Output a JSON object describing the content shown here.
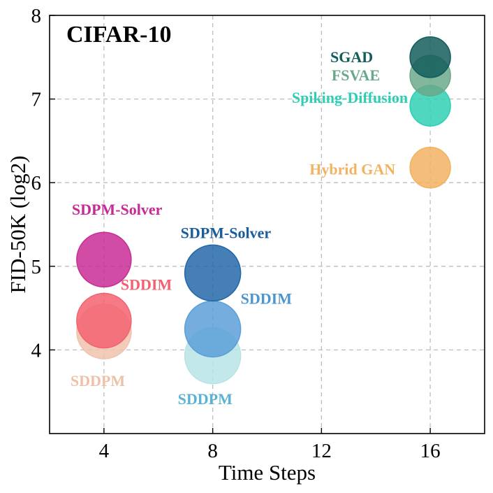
{
  "chart_data": {
    "type": "scatter",
    "title": "CIFAR-10",
    "xlabel": "Time Steps",
    "ylabel": "FID-50K (log2)",
    "xlim": [
      2,
      18
    ],
    "ylim": [
      3,
      8
    ],
    "xticks": [
      4,
      8,
      12,
      16
    ],
    "yticks": [
      4,
      5,
      6,
      7,
      8
    ],
    "grid": true,
    "points": [
      {
        "label": "SDDPM",
        "x": 8,
        "y": 3.93,
        "color": "#b6e3e6"
      },
      {
        "label": "SDDIM",
        "x": 8,
        "y": 4.25,
        "color": "#5a9fd8"
      },
      {
        "label": "SDPM-Solver",
        "x": 8,
        "y": 4.92,
        "color": "#2166a8"
      },
      {
        "label": "SDDPM",
        "x": 4,
        "y": 4.22,
        "color": "#efc2ac"
      },
      {
        "label": "SDDIM",
        "x": 4,
        "y": 4.35,
        "color": "#f3606f"
      },
      {
        "label": "SDPM-Solver",
        "x": 4,
        "y": 5.08,
        "color": "#c82a94"
      },
      {
        "label": "Hybrid GAN",
        "x": 16,
        "y": 6.18,
        "color": "#f2b261"
      },
      {
        "label": "Spiking-Diffusion",
        "x": 16,
        "y": 6.92,
        "color": "#2dcfb4"
      },
      {
        "label": "FSVAE",
        "x": 16,
        "y": 7.28,
        "color": "#6aa88a"
      },
      {
        "label": "SGAD",
        "x": 16,
        "y": 7.5,
        "color": "#125c5a"
      }
    ]
  }
}
